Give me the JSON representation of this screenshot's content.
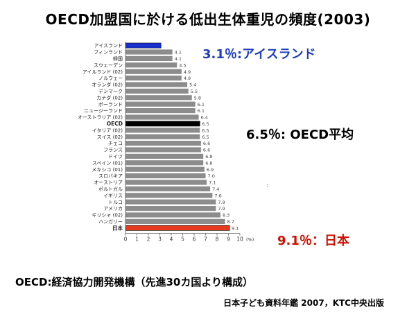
{
  "title": "OECD加盟国に於ける低出生体重児の頻度(2003)",
  "callouts": {
    "iceland": "3.1％:アイスランド",
    "oecd": "6.5％: OECD平均",
    "japan": "9.1％：日本"
  },
  "note": "OECD:経済協力開発機構（先進30カ国より構成）",
  "source": "日本子ども資料年鑑 2007，KTC中央出版",
  "stray_mark": ":",
  "colors": {
    "default_bar": "#8c8c8c",
    "iceland": "#1a2fcc",
    "oecd": "#000000",
    "japan": "#e83a1e"
  },
  "chart_data": {
    "type": "bar",
    "orientation": "horizontal",
    "categories": [
      "アイスランド",
      "フィンランド",
      "韓国",
      "スウェーデン",
      "アイルランド (02)",
      "ノルウェー",
      "オランダ (02)",
      "デンマーク",
      "カナダ (02)",
      "ポーランド",
      "ニュージーランド",
      "オーストラリア (02)",
      "OECD",
      "イタリア (02)",
      "スイス (02)",
      "チェコ",
      "フランス",
      "ドイツ",
      "スペイン (01)",
      "メキシコ (01)",
      "スロバキア",
      "オーストリア",
      "ポルトガル",
      "イギリス",
      "トルコ",
      "アメリカ",
      "ギリシャ (02)",
      "ハンガリー",
      "日本"
    ],
    "values": [
      3.1,
      4.1,
      4.1,
      4.5,
      4.9,
      4.9,
      5.4,
      5.5,
      5.8,
      6.1,
      6.1,
      6.4,
      6.5,
      6.5,
      6.5,
      6.6,
      6.6,
      6.8,
      6.8,
      6.9,
      7.0,
      7.1,
      7.4,
      7.6,
      7.9,
      7.9,
      8.3,
      8.7,
      9.1
    ],
    "value_labels": [
      "",
      "4.1",
      "4.1",
      "4.5",
      "4.9",
      "4.9",
      "5.4",
      "5.5",
      "5.8",
      "6.1",
      "6.1",
      "6.4",
      "6.5",
      "6.5",
      "6.5",
      "6.6",
      "6.6",
      "6.8",
      "6.8",
      "6.9",
      "7.0",
      "7.1",
      "7.4",
      "7.6",
      "7.9",
      "7.9",
      "8.3",
      "8.7",
      "9.1"
    ],
    "highlight": {
      "アイスランド": "iceland",
      "OECD": "oecd",
      "日本": "japan"
    },
    "xlim": [
      0,
      10
    ],
    "x_ticks": [
      0,
      1,
      2,
      3,
      4,
      5,
      6,
      7,
      8,
      9,
      10
    ],
    "x_unit": "(%)",
    "legend": "none",
    "grid": false
  }
}
